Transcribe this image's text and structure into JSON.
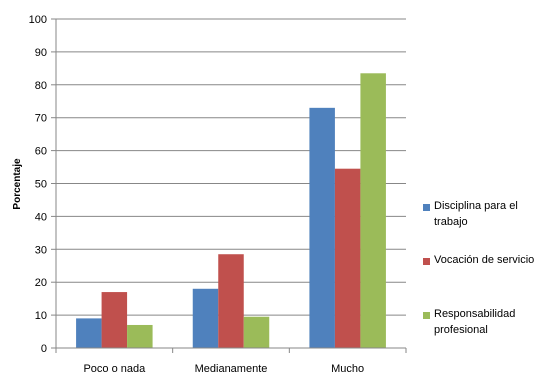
{
  "chart_data": {
    "type": "bar",
    "title": "",
    "xlabel": "",
    "ylabel": "Porcentaje",
    "ylim": [
      0,
      100
    ],
    "yticks": [
      0,
      10,
      20,
      30,
      40,
      50,
      60,
      70,
      80,
      90,
      100
    ],
    "grid": true,
    "legend_position": "right",
    "categories": [
      "Poco o nada",
      "Medianamente",
      "Mucho"
    ],
    "series": [
      {
        "name": "Disciplina para el trabajo",
        "color": "#4f81bd",
        "values": [
          9,
          18,
          73
        ]
      },
      {
        "name": "Vocación de servicio",
        "color": "#c0504d",
        "values": [
          17,
          28.5,
          54.5
        ]
      },
      {
        "name": "Responsabilidad profesional",
        "color": "#9bbb59",
        "values": [
          7,
          9.5,
          83.5
        ]
      }
    ]
  }
}
